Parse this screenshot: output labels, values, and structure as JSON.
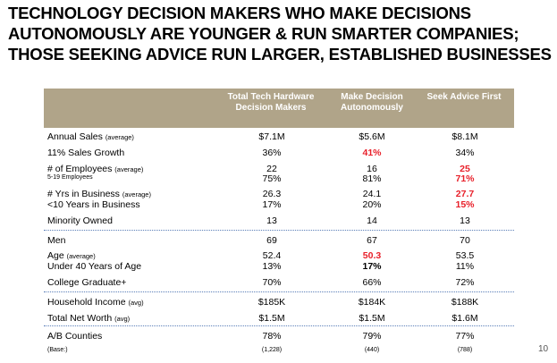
{
  "title_lines": [
    "TECHNOLOGY DECISION MAKERS WHO MAKE DECISIONS",
    "AUTONOMOUSLY ARE YOUNGER & RUN SMARTER COMPANIES;",
    "THOSE SEEKING ADVICE RUN LARGER, ESTABLISHED BUSINESSES"
  ],
  "columns": [
    "Total Tech Hardware Decision Makers",
    "Make Decision Autonomously",
    "Seek Advice First"
  ],
  "rows": [
    {
      "label": "Annual Sales",
      "qual": "(average)",
      "values": [
        "$7.1M",
        "$5.6M",
        "$8.1M"
      ]
    },
    {
      "label": "11% Sales Growth",
      "qual": "",
      "values": [
        "36%",
        "41%",
        "34%"
      ]
    },
    {
      "label": "# of Employees",
      "qual": "(average)",
      "values": [
        "22",
        "16",
        "25"
      ]
    },
    {
      "label": "5-19 Employees",
      "qual": "",
      "values": [
        "75%",
        "81%",
        "71%"
      ]
    },
    {
      "label": "# Yrs in Business",
      "qual": "(average)",
      "values": [
        "26.3",
        "24.1",
        "27.7"
      ]
    },
    {
      "label": "<10 Years in Business",
      "qual": "",
      "values": [
        "17%",
        "20%",
        "15%"
      ]
    },
    {
      "label": "Minority Owned",
      "qual": "",
      "values": [
        "13",
        "14",
        "13"
      ]
    },
    {
      "label": "Men",
      "qual": "",
      "values": [
        "69",
        "67",
        "70"
      ]
    },
    {
      "label": "Age",
      "qual": "(average)",
      "values": [
        "52.4",
        "50.3",
        "53.5"
      ]
    },
    {
      "label": "Under 40 Years of Age",
      "qual": "",
      "values": [
        "13%",
        "17%",
        "11%"
      ]
    },
    {
      "label": "College Graduate+",
      "qual": "",
      "values": [
        "70%",
        "66%",
        "72%"
      ]
    },
    {
      "label": "Household Income",
      "qual": "(avg)",
      "values": [
        "$185K",
        "$184K",
        "$188K"
      ]
    },
    {
      "label": "Total Net Worth",
      "qual": "(avg)",
      "values": [
        "$1.5M",
        "$1.5M",
        "$1.6M"
      ]
    },
    {
      "label": "A/B Counties",
      "qual": "",
      "values": [
        "78%",
        "79%",
        "77%"
      ]
    },
    {
      "label": "(Base:)",
      "qual": "",
      "values": [
        "(1,228)",
        "(440)",
        "(788)"
      ]
    }
  ],
  "highlight_color": "#e8202a",
  "header_color": "#b0a489",
  "page_number": "10"
}
